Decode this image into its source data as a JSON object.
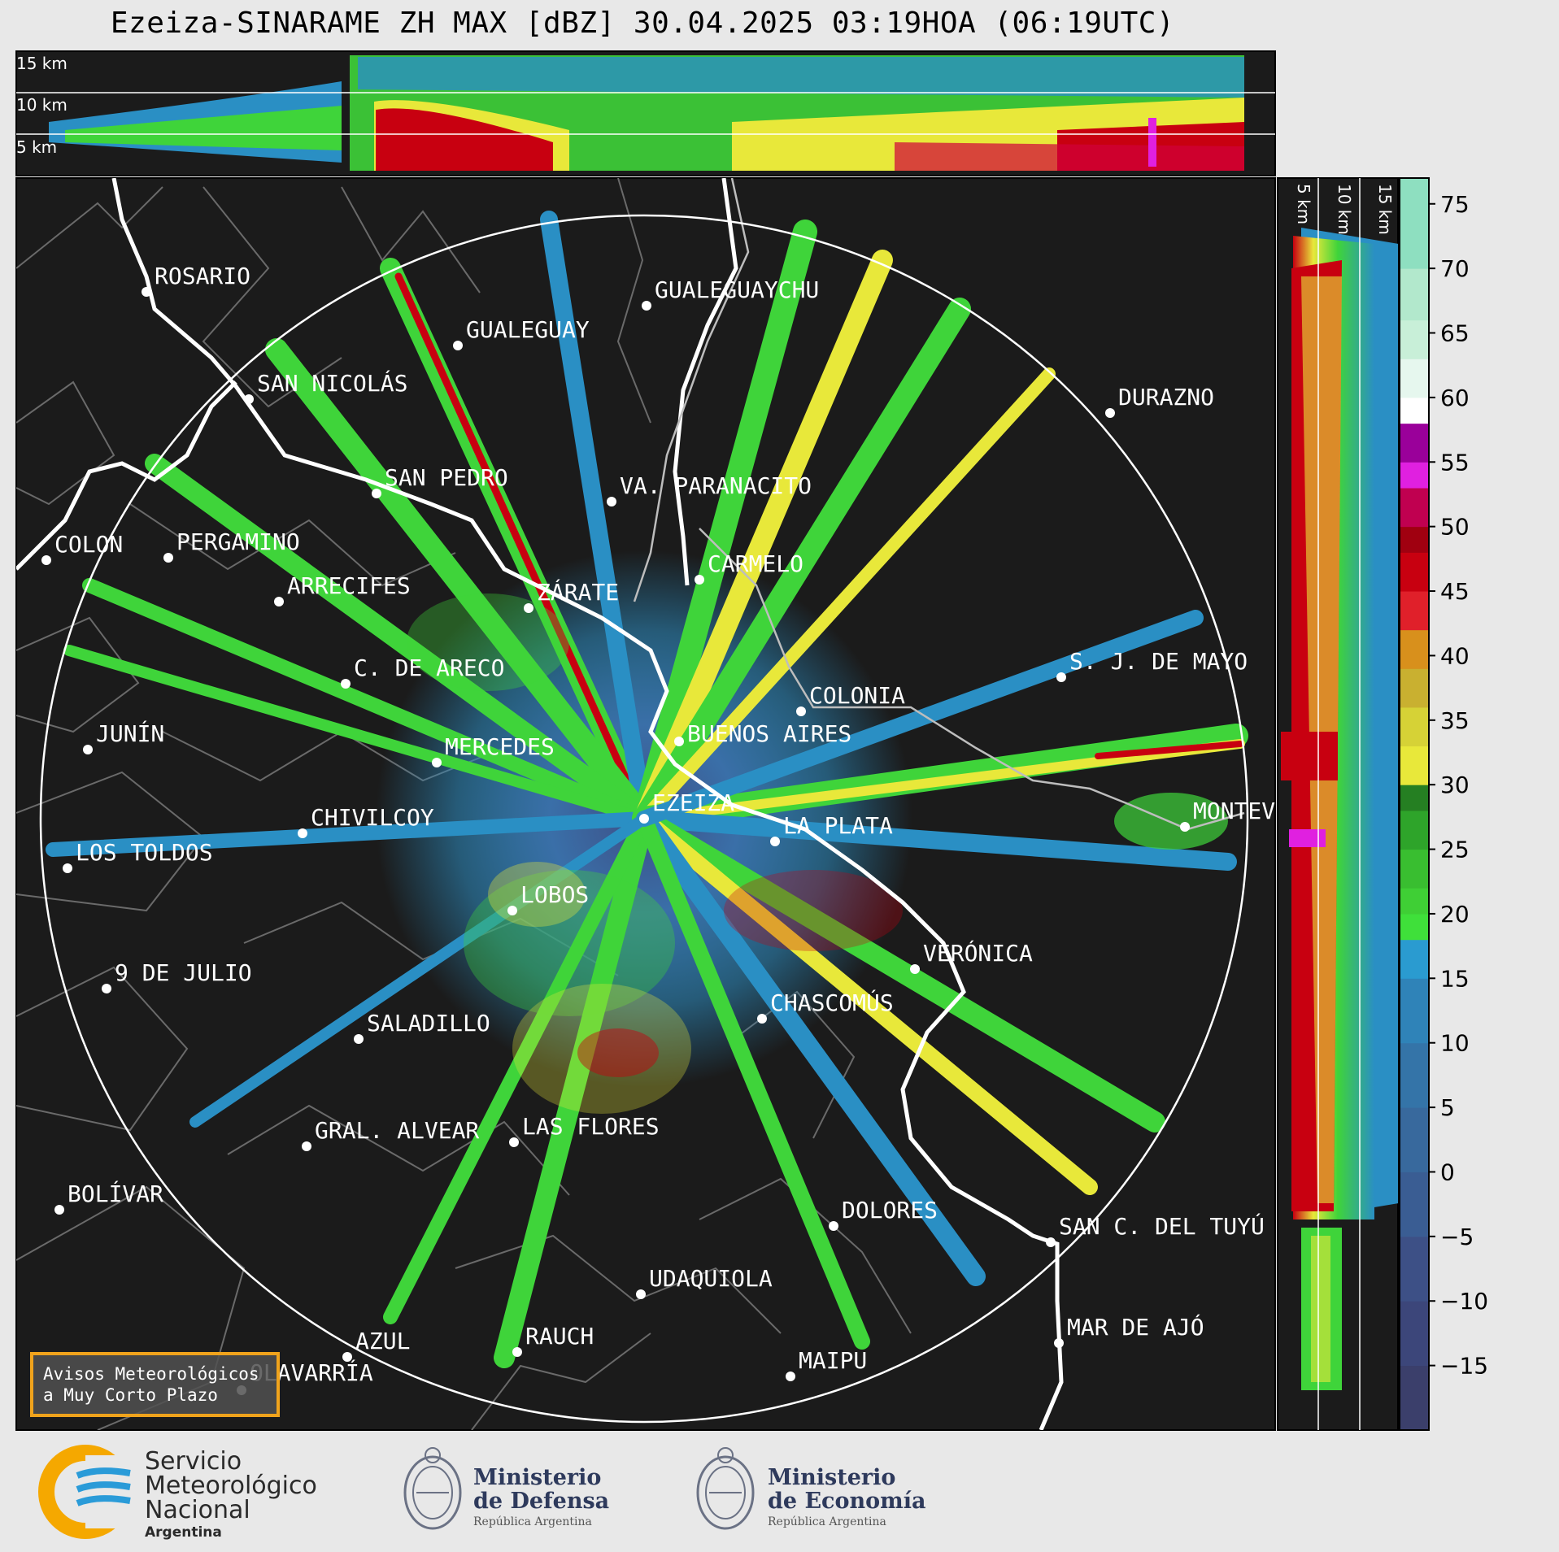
{
  "title": "Ezeiza-SINARAME ZH MAX [dBZ] 30.04.2025 03:19HOA (06:19UTC)",
  "top_panel": {
    "heights": [
      "15 km",
      "10 km",
      "5 km"
    ]
  },
  "side_panel": {
    "heights": [
      "5 km",
      "10 km",
      "15 km"
    ]
  },
  "colorbar": {
    "ticks": [
      "75",
      "70",
      "65",
      "60",
      "55",
      "50",
      "45",
      "40",
      "35",
      "30",
      "25",
      "20",
      "15",
      "10",
      "5",
      "0",
      "−5",
      "−10",
      "−15"
    ],
    "colors": {
      "low": "#3b3f6b",
      "blue": "#2a8fc4",
      "green": "#3fd43a",
      "yellow": "#e8e83a",
      "red": "#c80010",
      "magenta": "#e020e0",
      "white": "#ffffff",
      "teal": "#8edfc0"
    }
  },
  "cities": [
    {
      "name": "ROSARIO"
    },
    {
      "name": "GUALEGUAYCHU"
    },
    {
      "name": "GUALEGUAY"
    },
    {
      "name": "SAN NICOLÁS"
    },
    {
      "name": "DURAZNO"
    },
    {
      "name": "SAN PEDRO"
    },
    {
      "name": "VA. PARANACITO"
    },
    {
      "name": "COLON"
    },
    {
      "name": "PERGAMINO"
    },
    {
      "name": "CARMELO"
    },
    {
      "name": "ARRECIFES"
    },
    {
      "name": "ZÁRATE"
    },
    {
      "name": "S. J. DE MAYO"
    },
    {
      "name": "C. DE ARECO"
    },
    {
      "name": "COLONIA"
    },
    {
      "name": "JUNÍN"
    },
    {
      "name": "BUENOS AIRES"
    },
    {
      "name": "MERCEDES"
    },
    {
      "name": "EZEIZA"
    },
    {
      "name": "MONTEV"
    },
    {
      "name": "CHIVILCOY"
    },
    {
      "name": "LA PLATA"
    },
    {
      "name": "LOS TOLDOS"
    },
    {
      "name": "LOBOS"
    },
    {
      "name": "VERÓNICA"
    },
    {
      "name": "9 DE JULIO"
    },
    {
      "name": "CHASCOMÚS"
    },
    {
      "name": "SALADILLO"
    },
    {
      "name": "GRAL. ALVEAR"
    },
    {
      "name": "LAS FLORES"
    },
    {
      "name": "BOLÍVAR"
    },
    {
      "name": "DOLORES"
    },
    {
      "name": "SAN C. DEL TUYÚ"
    },
    {
      "name": "UDAQUIOLA"
    },
    {
      "name": "MAR DE AJÓ"
    },
    {
      "name": "AZUL"
    },
    {
      "name": "RAUCH"
    },
    {
      "name": "OLAVARRÍA"
    },
    {
      "name": "MAIPU"
    }
  ],
  "warning_box": {
    "line1": "Avisos Meteorológicos",
    "line2": "a Muy Corto Plazo"
  },
  "logos": {
    "smn": {
      "line1": "Servicio",
      "line2": "Meteorológico",
      "line3": "Nacional",
      "country": "Argentina"
    },
    "defensa": {
      "line1": "Ministerio",
      "line2": "de Defensa",
      "sub": "República Argentina"
    },
    "economia": {
      "line1": "Ministerio",
      "line2": "de Economía",
      "sub": "República Argentina"
    }
  }
}
